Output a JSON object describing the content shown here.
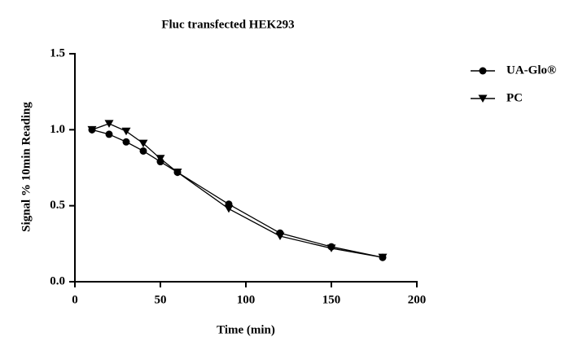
{
  "chart_data": {
    "type": "line",
    "title": "Fluc transfected HEK293",
    "x_label": "Time (min)",
    "y_label": "Signal % 10min Reading",
    "x": [
      10,
      20,
      30,
      40,
      50,
      60,
      90,
      120,
      150,
      180
    ],
    "series": [
      {
        "name": "UA-Glo®",
        "color": "#000000",
        "marker": "circle",
        "values": [
          1.0,
          0.97,
          0.92,
          0.86,
          0.79,
          0.72,
          0.51,
          0.32,
          0.23,
          0.16
        ]
      },
      {
        "name": "PC",
        "color": "#000000",
        "marker": "triangle-down",
        "values": [
          1.0,
          1.04,
          0.99,
          0.91,
          0.81,
          0.72,
          0.48,
          0.3,
          0.22,
          0.16
        ]
      }
    ],
    "xlim": [
      0,
      200
    ],
    "xticks": [
      0,
      50,
      100,
      150,
      200
    ],
    "ylim": [
      0,
      1.5
    ],
    "yticks": [
      {
        "value": 0,
        "label": "0.0"
      },
      0.5,
      {
        "value": 1,
        "label": "1.0"
      },
      {
        "value": 1.5,
        "label": "1.5"
      }
    ],
    "legend": "right"
  }
}
